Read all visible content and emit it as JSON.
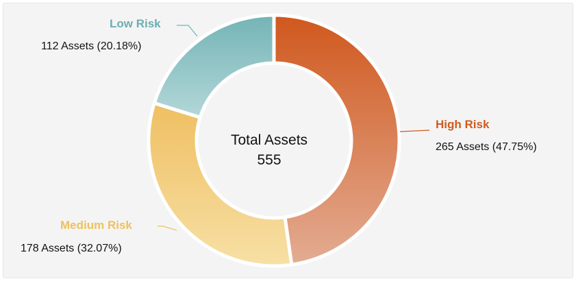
{
  "chart_data": {
    "type": "pie",
    "center": {
      "title": "Total Assets",
      "value": "555"
    },
    "categories": [
      "High Risk",
      "Medium Risk",
      "Low Risk"
    ],
    "values": [
      265,
      178,
      112
    ],
    "value_labels": [
      "265 Assets (47.75%)",
      "178 Assets (32.07%)",
      "112 Assets (20.18%)"
    ],
    "colors": {
      "high": "#d0581e",
      "medium": "#efbf62",
      "low": "#74b4b6",
      "label_high": "#cf5a1e",
      "label_medium": "#eec15f",
      "label_low": "#6aafb1"
    }
  }
}
